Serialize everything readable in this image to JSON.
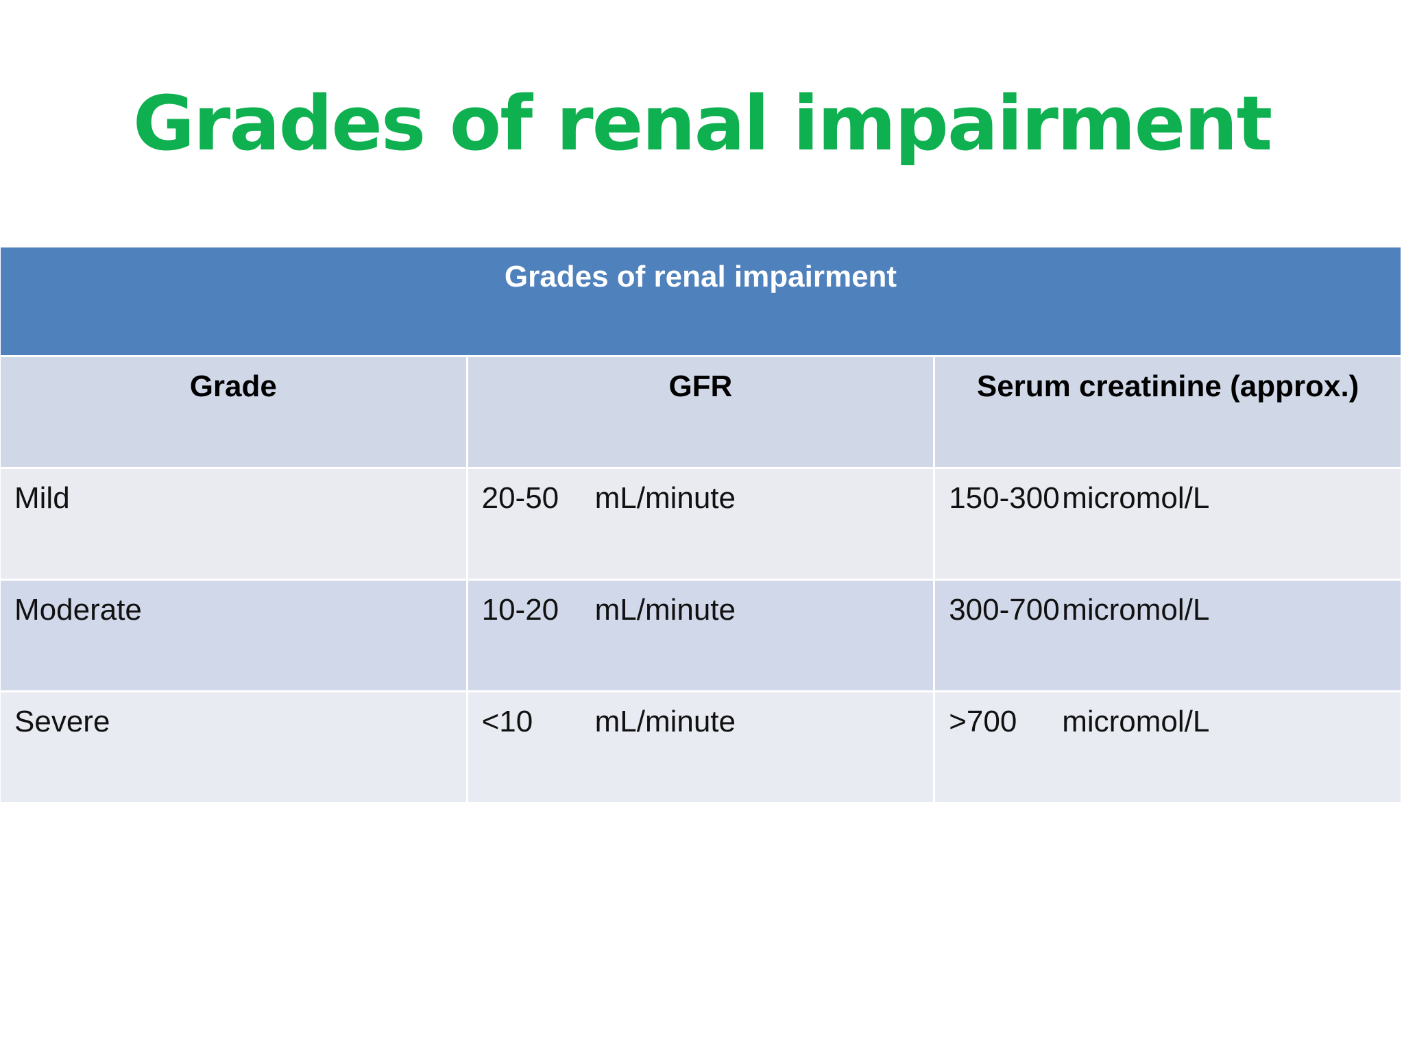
{
  "title": "Grades of renal impairment",
  "table": {
    "caption": "Grades of renal impairment",
    "headers": [
      "Grade",
      "GFR",
      "Serum creatinine (approx.)"
    ],
    "rows": [
      {
        "grade": "Mild",
        "gfr_value": "20-50",
        "gfr_unit": "mL/minute",
        "creat_value": "150-300",
        "creat_unit": "micromol/L"
      },
      {
        "grade": "Moderate",
        "gfr_value": "10-20",
        "gfr_unit": "mL/minute",
        "creat_value": "300-700",
        "creat_unit": "micromol/L"
      },
      {
        "grade": "Severe",
        "gfr_value": "<10",
        "gfr_unit": "mL/minute",
        "creat_value": ">700",
        "creat_unit": "micromol/L"
      }
    ]
  },
  "colors": {
    "title": "#0fb04f",
    "caption_bg": "#4f81bd",
    "header_bg": "#d0d8e8",
    "row_light": "#e9ebf1",
    "row_dark": "#d1d8ea"
  }
}
